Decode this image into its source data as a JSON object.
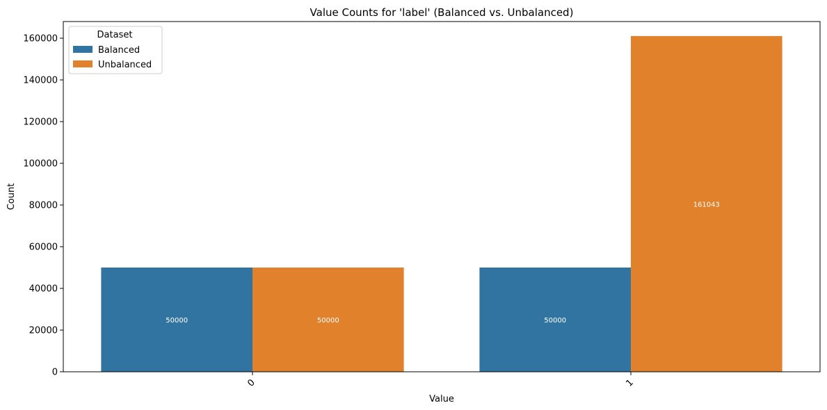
{
  "chart_data": {
    "type": "bar",
    "title": "Value Counts for 'label' (Balanced vs. Unbalanced)",
    "xlabel": "Value",
    "ylabel": "Count",
    "categories": [
      "0",
      "1"
    ],
    "series": [
      {
        "name": "Balanced",
        "values": [
          50000,
          50000
        ],
        "color": "#3274a1"
      },
      {
        "name": "Unbalanced",
        "values": [
          50000,
          161043
        ],
        "color": "#e1812c"
      }
    ],
    "ylim": [
      0,
      168000
    ],
    "yticks": [
      0,
      20000,
      40000,
      60000,
      80000,
      100000,
      120000,
      140000,
      160000
    ],
    "xtick_rotation": -45,
    "grid": false,
    "bar_labels": true,
    "legend": {
      "title": "Dataset",
      "placement": "top-left"
    }
  }
}
